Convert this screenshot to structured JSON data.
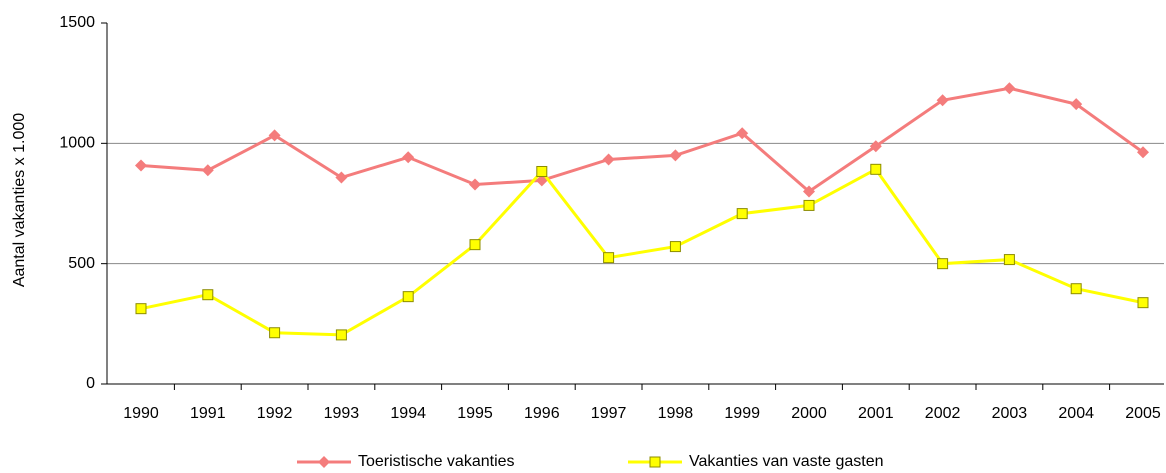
{
  "chart_data": {
    "type": "line",
    "y_label": "Aantal vakanties x 1.000",
    "categories": [
      "1990",
      "1991",
      "1992",
      "1993",
      "1994",
      "1995",
      "1996",
      "1997",
      "1998",
      "1999",
      "2000",
      "2001",
      "2002",
      "2003",
      "2004",
      "2005"
    ],
    "series": [
      {
        "name": "Toeristische vakanties",
        "color": "#f47c7c",
        "marker": "diamond",
        "values": [
          908,
          888,
          1033,
          858,
          942,
          829,
          846,
          933,
          950,
          1042,
          800,
          988,
          1179,
          1229,
          1163,
          963
        ]
      },
      {
        "name": "Vakanties van vaste gasten",
        "color": "#ffff00",
        "marker": "square",
        "values": [
          313,
          371,
          213,
          204,
          363,
          579,
          883,
          525,
          571,
          708,
          742,
          892,
          500,
          517,
          396,
          338
        ]
      }
    ],
    "ylim": [
      0,
      1500
    ],
    "yticks": [
      0,
      500,
      1000,
      1500
    ],
    "grid": true,
    "legend": "bottom"
  }
}
